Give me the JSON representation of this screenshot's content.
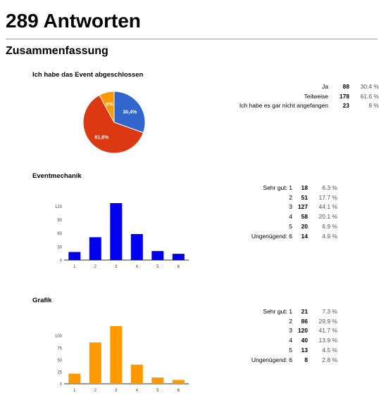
{
  "header": {
    "title": "289 Antworten",
    "section": "Zusammenfassung"
  },
  "questions": [
    {
      "title": "Ich habe das Event abgeschlossen",
      "rows": [
        {
          "label": "Ja",
          "count": "88",
          "percent": "30.4 %"
        },
        {
          "label": "Teilweise",
          "count": "178",
          "percent": "61.6 %"
        },
        {
          "label": "Ich habe es gar nicht angefangen",
          "count": "23",
          "percent": "8 %"
        }
      ]
    },
    {
      "title": "Eventmechanik",
      "rows": [
        {
          "label": "Sehr gut: 1",
          "count": "18",
          "percent": "6.3 %"
        },
        {
          "label": "2",
          "count": "51",
          "percent": "17.7 %"
        },
        {
          "label": "3",
          "count": "127",
          "percent": "44.1 %"
        },
        {
          "label": "4",
          "count": "58",
          "percent": "20.1 %"
        },
        {
          "label": "5",
          "count": "20",
          "percent": "6.9 %"
        },
        {
          "label": "Ungenügend: 6",
          "count": "14",
          "percent": "4.9 %"
        }
      ]
    },
    {
      "title": "Grafik",
      "rows": [
        {
          "label": "Sehr gut: 1",
          "count": "21",
          "percent": "7.3 %"
        },
        {
          "label": "2",
          "count": "86",
          "percent": "29.9 %"
        },
        {
          "label": "3",
          "count": "120",
          "percent": "41.7 %"
        },
        {
          "label": "4",
          "count": "40",
          "percent": "13.9 %"
        },
        {
          "label": "5",
          "count": "13",
          "percent": "4.5 %"
        },
        {
          "label": "Ungenügend: 6",
          "count": "8",
          "percent": "2.8 %"
        }
      ]
    }
  ],
  "chart_data": [
    {
      "type": "pie",
      "title": "Ich habe das Event abgeschlossen",
      "categories": [
        "Ja",
        "Teilweise",
        "Ich habe es gar nicht angefangen"
      ],
      "values": [
        88,
        178,
        23
      ],
      "slice_labels": [
        "30,4%",
        "61,6%",
        "8%"
      ],
      "colors": [
        "#3366cc",
        "#dc3912",
        "#ff9900"
      ]
    },
    {
      "type": "bar",
      "title": "Eventmechanik",
      "categories": [
        "1",
        "2",
        "3",
        "4",
        "5",
        "6"
      ],
      "values": [
        18,
        51,
        127,
        58,
        20,
        14
      ],
      "yticks": [
        0,
        30,
        60,
        90,
        120
      ],
      "ylim": [
        0,
        127
      ],
      "grid": false,
      "color": "#0000ee"
    },
    {
      "type": "bar",
      "title": "Grafik",
      "categories": [
        "1",
        "2",
        "3",
        "4",
        "5",
        "6"
      ],
      "values": [
        21,
        86,
        120,
        40,
        13,
        8
      ],
      "yticks": [
        0,
        25,
        50,
        75,
        100
      ],
      "ylim": [
        0,
        120
      ],
      "grid": false,
      "color": "#ff9900"
    }
  ]
}
